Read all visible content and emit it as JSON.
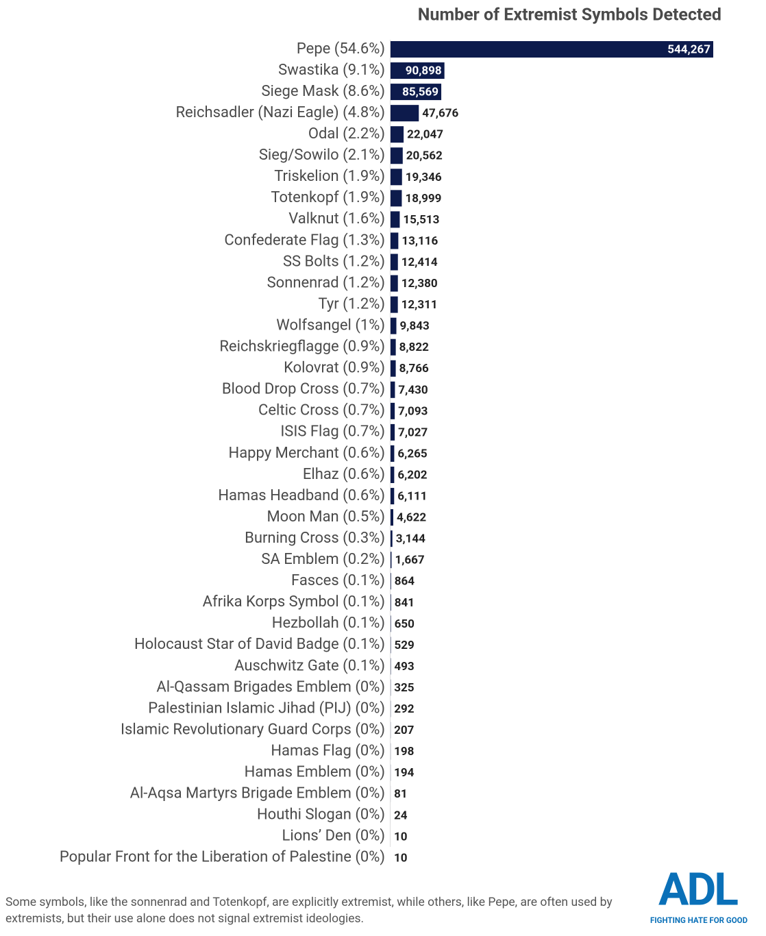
{
  "chart_data": {
    "type": "bar",
    "orientation": "horizontal",
    "title": "Number of Extremist Symbols Detected",
    "color": "#0d1b4c",
    "categories": [
      "Pepe (54.6%)",
      "Swastika (9.1%)",
      "Siege Mask (8.6%)",
      "Reichsadler (Nazi Eagle) (4.8%)",
      "Odal (2.2%)",
      "Sieg/Sowilo (2.1%)",
      "Triskelion (1.9%)",
      "Totenkopf (1.9%)",
      "Valknut (1.6%)",
      "Confederate Flag (1.3%)",
      "SS Bolts (1.2%)",
      "Sonnenrad (1.2%)",
      "Tyr (1.2%)",
      "Wolfsangel (1%)",
      "Reichskriegflagge (0.9%)",
      "Kolovrat (0.9%)",
      "Blood Drop Cross (0.7%)",
      "Celtic Cross (0.7%)",
      "ISIS Flag (0.7%)",
      "Happy Merchant (0.6%)",
      "Elhaz (0.6%)",
      "Hamas Headband (0.6%)",
      "Moon Man (0.5%)",
      "Burning Cross (0.3%)",
      "SA Emblem (0.2%)",
      "Fasces (0.1%)",
      "Afrika Korps Symbol (0.1%)",
      "Hezbollah (0.1%)",
      "Holocaust Star of David Badge (0.1%)",
      "Auschwitz Gate (0.1%)",
      "Al-Qassam Brigades Emblem (0%)",
      "Palestinian Islamic Jihad (PIJ) (0%)",
      "Islamic Revolutionary Guard Corps (0%)",
      "Hamas Flag (0%)",
      "Hamas Emblem (0%)",
      "Al-Aqsa Martyrs Brigade Emblem (0%)",
      "Houthi Slogan (0%)",
      "Lions’ Den (0%)",
      "Popular Front for the Liberation of Palestine (0%)"
    ],
    "values": [
      544267,
      90898,
      85569,
      47676,
      22047,
      20562,
      19346,
      18999,
      15513,
      13116,
      12414,
      12380,
      12311,
      9843,
      8822,
      8766,
      7430,
      7093,
      7027,
      6265,
      6202,
      6111,
      4622,
      3144,
      1667,
      864,
      841,
      650,
      529,
      493,
      325,
      292,
      207,
      198,
      194,
      81,
      24,
      10,
      10
    ],
    "value_labels": [
      "544,267",
      "90,898",
      "85,569",
      "47,676",
      "22,047",
      "20,562",
      "19,346",
      "18,999",
      "15,513",
      "13,116",
      "12,414",
      "12,380",
      "12,311",
      "9,843",
      "8,822",
      "8,766",
      "7,430",
      "7,093",
      "7,027",
      "6,265",
      "6,202",
      "6,111",
      "4,622",
      "3,144",
      "1,667",
      "864",
      "841",
      "650",
      "529",
      "493",
      "325",
      "292",
      "207",
      "198",
      "194",
      "81",
      "24",
      "10",
      "10"
    ],
    "footnote": "Some symbols, like the sonnenrad and Totenkopf, are explicitly extremist, while others, like Pepe, are often used by extremists, but their use alone does not signal extremist ideologies.",
    "logo": {
      "text": "ADL",
      "tagline": "FIGHTING HATE FOR GOOD"
    }
  }
}
